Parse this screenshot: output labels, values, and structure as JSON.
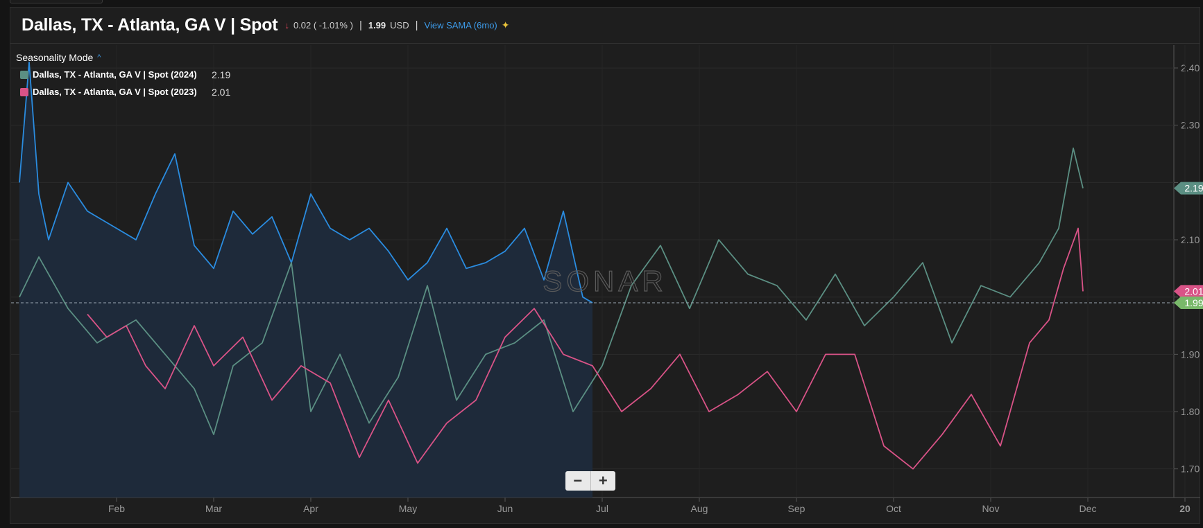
{
  "header": {
    "title": "Dallas, TX - Atlanta, GA V | Spot",
    "change_arrow": "↓",
    "change": "0.02 ( -1.01% )",
    "separator": "|",
    "price": "1.99",
    "currency": "USD",
    "sama_link": "View SAMA (6mo)",
    "sama_icon": "chart-sparkle-icon"
  },
  "legend": {
    "mode_label": "Seasonality Mode",
    "mode_icon": "chevron-up-icon",
    "items": [
      {
        "name": "Dallas, TX - Atlanta, GA V | Spot (2024)",
        "value": "2.19",
        "color": "#5b8f83"
      },
      {
        "name": "Dallas, TX - Atlanta, GA V | Spot (2023)",
        "value": "2.01",
        "color": "#d95387"
      }
    ]
  },
  "watermark": "SONAR",
  "zoom": {
    "minus": "−",
    "plus": "+"
  },
  "chart_data": {
    "type": "line",
    "x_ticks": [
      "Feb",
      "Mar",
      "Apr",
      "May",
      "Jun",
      "Jul",
      "Aug",
      "Sep",
      "Oct",
      "Nov",
      "Dec",
      "20"
    ],
    "ylim": [
      1.65,
      2.44
    ],
    "y_ticks": [
      1.7,
      1.8,
      1.9,
      2.0,
      2.1,
      2.2,
      2.3,
      2.4
    ],
    "y_tick_labels": [
      "1.70",
      "1.80",
      "1.90",
      "",
      "2.10",
      "",
      "2.30",
      "2.40"
    ],
    "current_price": 1.99,
    "badges": [
      {
        "value": "2.19",
        "color": "#5b8f83"
      },
      {
        "value": "2.01",
        "color": "#d95387"
      },
      {
        "value": "1.99",
        "color": "#79b86a"
      }
    ],
    "grid": true,
    "series": [
      {
        "name": "Dallas, TX - Atlanta, GA V | Spot (2024)",
        "color": "#5b8f83",
        "x": [
          0,
          0.2,
          0.5,
          0.8,
          1.2,
          1.5,
          1.8,
          2.0,
          2.2,
          2.5,
          2.8,
          3.0,
          3.3,
          3.6,
          3.9,
          4.2,
          4.5,
          4.8,
          5.1,
          5.4,
          5.7,
          6.0,
          6.3,
          6.6,
          6.9,
          7.2,
          7.5,
          7.8,
          8.1,
          8.4,
          8.7,
          9.0,
          9.3,
          9.6,
          9.9,
          10.2,
          10.5,
          10.7,
          10.85,
          10.95
        ],
        "y": [
          2.0,
          2.07,
          1.98,
          1.92,
          1.96,
          1.9,
          1.84,
          1.76,
          1.88,
          1.92,
          2.06,
          1.8,
          1.9,
          1.78,
          1.86,
          2.02,
          1.82,
          1.9,
          1.92,
          1.96,
          1.8,
          1.88,
          2.02,
          2.09,
          1.98,
          2.1,
          2.04,
          2.02,
          1.96,
          2.04,
          1.95,
          2.0,
          2.06,
          1.92,
          2.02,
          2.0,
          2.06,
          2.12,
          2.26,
          2.19
        ]
      },
      {
        "name": "Dallas, TX - Atlanta, GA V | Spot (2023)",
        "color": "#d95387",
        "x": [
          0.7,
          0.9,
          1.1,
          1.3,
          1.5,
          1.8,
          2.0,
          2.3,
          2.6,
          2.9,
          3.2,
          3.5,
          3.8,
          4.1,
          4.4,
          4.7,
          5.0,
          5.3,
          5.6,
          5.9,
          6.2,
          6.5,
          6.8,
          7.1,
          7.4,
          7.7,
          8.0,
          8.3,
          8.6,
          8.9,
          9.2,
          9.5,
          9.8,
          10.1,
          10.4,
          10.6,
          10.75,
          10.9,
          10.95
        ],
        "y": [
          1.97,
          1.93,
          1.95,
          1.88,
          1.84,
          1.95,
          1.88,
          1.93,
          1.82,
          1.88,
          1.85,
          1.72,
          1.82,
          1.71,
          1.78,
          1.82,
          1.93,
          1.98,
          1.9,
          1.88,
          1.8,
          1.84,
          1.9,
          1.8,
          1.83,
          1.87,
          1.8,
          1.9,
          1.9,
          1.74,
          1.7,
          1.76,
          1.83,
          1.74,
          1.92,
          1.96,
          2.05,
          2.12,
          2.01
        ]
      },
      {
        "name": "",
        "color": "#2a8ce0",
        "fill": "#1e2a3a",
        "x": [
          0,
          0.1,
          0.2,
          0.3,
          0.5,
          0.7,
          0.9,
          1.2,
          1.4,
          1.6,
          1.8,
          2.0,
          2.2,
          2.4,
          2.6,
          2.8,
          3.0,
          3.2,
          3.4,
          3.6,
          3.8,
          4.0,
          4.2,
          4.4,
          4.6,
          4.8,
          5.0,
          5.2,
          5.4,
          5.6,
          5.8,
          5.9
        ],
        "y": [
          2.2,
          2.41,
          2.18,
          2.1,
          2.2,
          2.15,
          2.13,
          2.1,
          2.18,
          2.25,
          2.09,
          2.05,
          2.15,
          2.11,
          2.14,
          2.06,
          2.18,
          2.12,
          2.1,
          2.12,
          2.08,
          2.03,
          2.06,
          2.12,
          2.05,
          2.06,
          2.08,
          2.12,
          2.03,
          2.15,
          2.0,
          1.99
        ]
      }
    ]
  }
}
